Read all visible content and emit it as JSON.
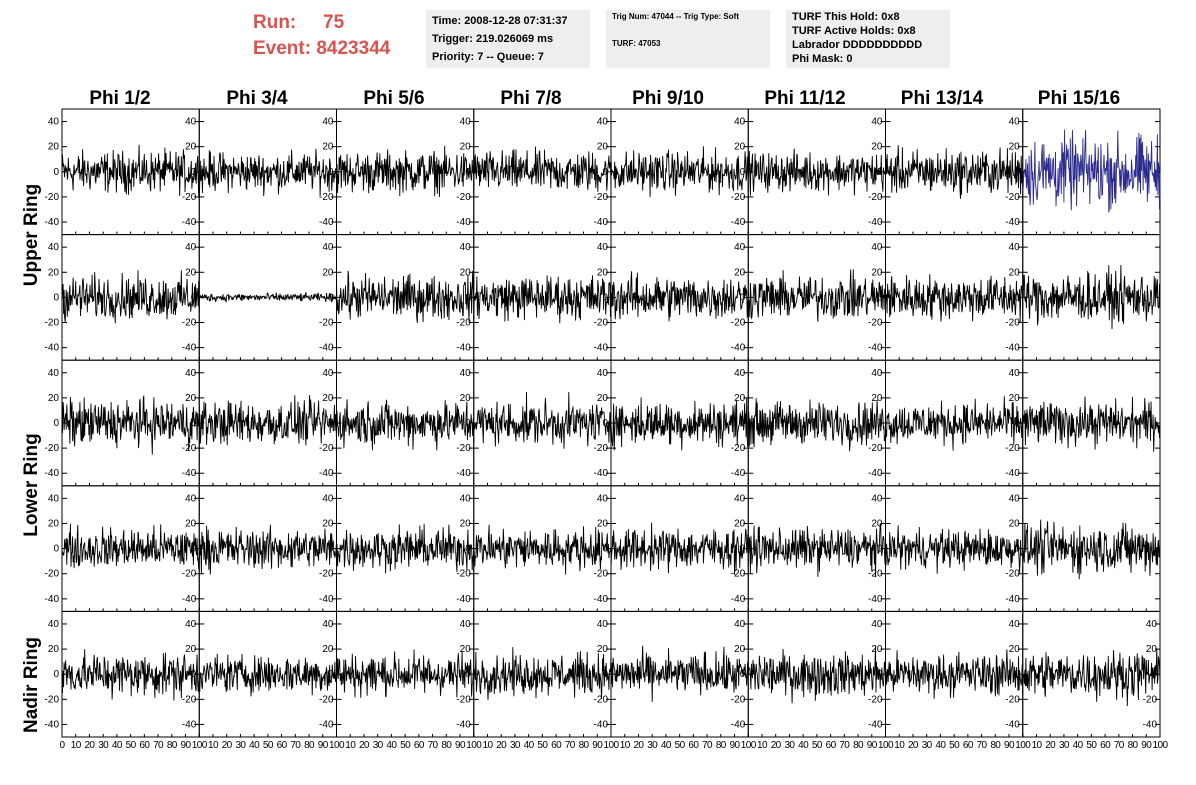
{
  "run": {
    "run_label": "Run:",
    "run_value": "75",
    "event_label": "Event:",
    "event_value": "8423344"
  },
  "time_box": {
    "time": "Time: 2008-12-28 07:31:37",
    "trigger": "Trigger: 219.026069 ms",
    "priority": "Priority: 7 -- Queue: 7"
  },
  "trig_box": {
    "trig": "Trig Num: 47044 -- Trig Type: Soft",
    "turf": "TURF: 47053"
  },
  "turf_box": {
    "this_hold": "TURF This Hold: 0x8",
    "active_holds": "TURF Active Holds: 0x8",
    "labrador": "Labrador DDDDDDDDDD",
    "phi_mask": "Phi Mask: 0"
  },
  "columns": [
    "Phi 1/2",
    "Phi 3/4",
    "Phi 5/6",
    "Phi 7/8",
    "Phi 9/10",
    "Phi 11/12",
    "Phi 13/14",
    "Phi 15/16"
  ],
  "row_labels": [
    "Upper Ring",
    "Lower Ring",
    "Nadir Ring"
  ],
  "colors": {
    "trace": "#000000",
    "highlight_trace": "#2b2b8f",
    "title_red": "#d9534f",
    "info_bg": "#eeeeee"
  },
  "chart_data": {
    "type": "line",
    "x_range": [
      0,
      100
    ],
    "y_range": [
      -50,
      50
    ],
    "y_ticks": [
      -40,
      -20,
      0,
      20,
      40
    ],
    "x_ticks": [
      0,
      10,
      20,
      30,
      40,
      50,
      60,
      70,
      80,
      90,
      100
    ],
    "x_tick_label_strings": [
      "0",
      "10",
      "20",
      "30",
      "40",
      "50",
      "60",
      "70",
      "80",
      "90",
      "100"
    ],
    "panel_rows": 5,
    "panel_cols": 8,
    "amplitudes": [
      [
        15,
        14,
        15,
        15,
        15,
        14,
        16,
        26
      ],
      [
        16,
        3,
        16,
        16,
        16,
        16,
        16,
        18
      ],
      [
        17,
        16,
        16,
        16,
        16,
        16,
        15,
        16
      ],
      [
        15,
        15,
        15,
        15,
        15,
        15,
        14,
        18
      ],
      [
        16,
        14,
        15,
        15,
        15,
        16,
        15,
        17
      ]
    ],
    "highlight_panel": [
      0,
      7
    ]
  }
}
